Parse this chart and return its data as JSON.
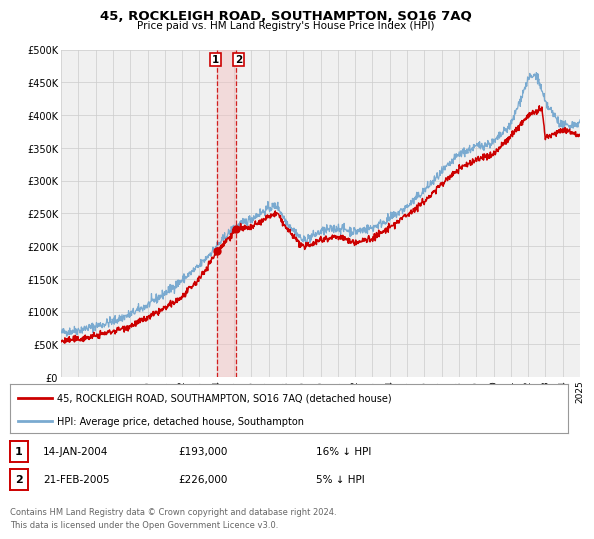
{
  "title": "45, ROCKLEIGH ROAD, SOUTHAMPTON, SO16 7AQ",
  "subtitle": "Price paid vs. HM Land Registry's House Price Index (HPI)",
  "legend_line1": "45, ROCKLEIGH ROAD, SOUTHAMPTON, SO16 7AQ (detached house)",
  "legend_line2": "HPI: Average price, detached house, Southampton",
  "footnote1": "Contains HM Land Registry data © Crown copyright and database right 2024.",
  "footnote2": "This data is licensed under the Open Government Licence v3.0.",
  "sale1_date": "14-JAN-2004",
  "sale1_price": "£193,000",
  "sale1_hpi": "16% ↓ HPI",
  "sale2_date": "21-FEB-2005",
  "sale2_price": "£226,000",
  "sale2_hpi": "5% ↓ HPI",
  "sale1_x": 2004.04,
  "sale1_y": 193000,
  "sale2_x": 2005.13,
  "sale2_y": 226000,
  "vline1_x": 2004.04,
  "vline2_x": 2005.13,
  "color_red": "#cc0000",
  "color_blue": "#7aaad0",
  "color_grid": "#cccccc",
  "color_bg": "#f0f0f0",
  "ylim_min": 0,
  "ylim_max": 500000,
  "xlim_min": 1995,
  "xlim_max": 2025,
  "yticks": [
    0,
    50000,
    100000,
    150000,
    200000,
    250000,
    300000,
    350000,
    400000,
    450000,
    500000
  ],
  "ytick_labels": [
    "£0",
    "£50K",
    "£100K",
    "£150K",
    "£200K",
    "£250K",
    "£300K",
    "£350K",
    "£400K",
    "£450K",
    "£500K"
  ],
  "xticks": [
    1995,
    1996,
    1997,
    1998,
    1999,
    2000,
    2001,
    2002,
    2003,
    2004,
    2005,
    2006,
    2007,
    2008,
    2009,
    2010,
    2011,
    2012,
    2013,
    2014,
    2015,
    2016,
    2017,
    2018,
    2019,
    2020,
    2021,
    2022,
    2023,
    2024,
    2025
  ]
}
